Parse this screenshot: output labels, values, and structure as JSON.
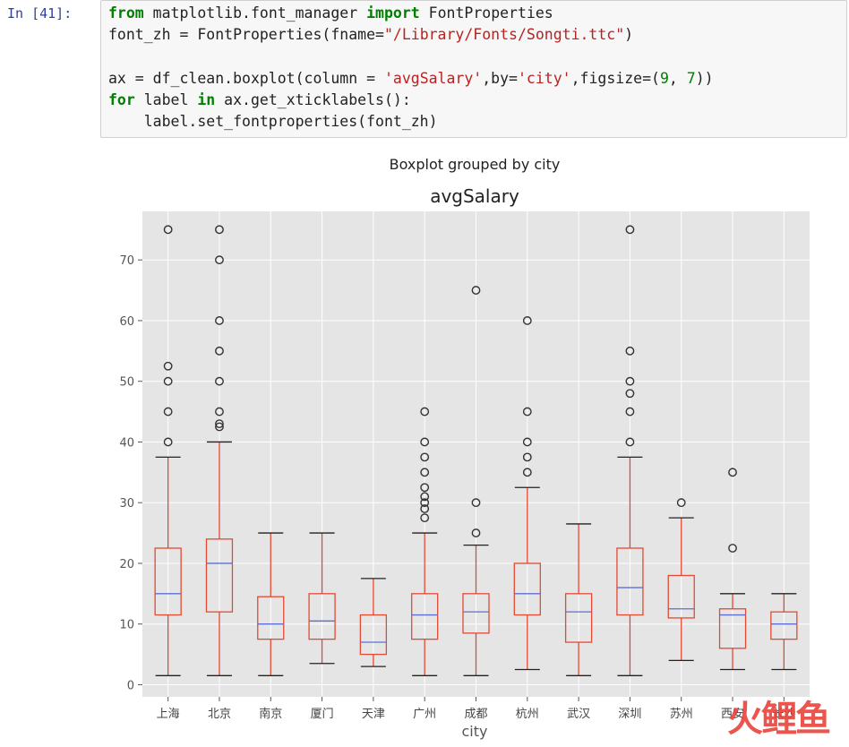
{
  "notebook": {
    "prompt": "In [41]:",
    "code_lines": [
      [
        [
          "kw",
          "from"
        ],
        [
          "t",
          " matplotlib.font_manager "
        ],
        [
          "kw",
          "import"
        ],
        [
          "t",
          " FontProperties"
        ]
      ],
      [
        [
          "t",
          "font_zh = FontProperties(fname="
        ],
        [
          "str",
          "\"/Library/Fonts/Songti.ttc\""
        ],
        [
          "t",
          ")"
        ]
      ],
      [],
      [
        [
          "t",
          "ax = df_clean.boxplot(column = "
        ],
        [
          "str",
          "'avgSalary'"
        ],
        [
          "t",
          ",by="
        ],
        [
          "str",
          "'city'"
        ],
        [
          "t",
          ",figsize=("
        ],
        [
          "num",
          "9"
        ],
        [
          "t",
          ", "
        ],
        [
          "num",
          "7"
        ],
        [
          "t",
          "))"
        ]
      ],
      [
        [
          "kw",
          "for"
        ],
        [
          "t",
          " label "
        ],
        [
          "kw",
          "in"
        ],
        [
          "t",
          " ax.get_xticklabels():"
        ]
      ],
      [
        [
          "t",
          "    label.set_fontproperties(font_zh)"
        ]
      ]
    ]
  },
  "chart_data": {
    "type": "boxplot",
    "suptitle": "Boxplot grouped by city",
    "title": "avgSalary",
    "xlabel": "city",
    "ylabel": "",
    "ylim": [
      -2,
      78
    ],
    "yticks": [
      0,
      10,
      20,
      30,
      40,
      50,
      60,
      70
    ],
    "grid": true,
    "colors": {
      "background": "#e5e5e5",
      "grid": "#ffffff",
      "box": "#e24a33",
      "median": "#5e6fd1",
      "flier": "#333333"
    },
    "categories": [
      "上海",
      "北京",
      "南京",
      "厦门",
      "天津",
      "广州",
      "成都",
      "杭州",
      "武汉",
      "深圳",
      "苏州",
      "西安",
      "长沙"
    ],
    "boxes": [
      {
        "whislo": 1.5,
        "q1": 11.5,
        "med": 15,
        "q3": 22.5,
        "whishi": 37.5,
        "fliers": [
          40,
          45,
          50,
          52.5,
          75
        ]
      },
      {
        "whislo": 1.5,
        "q1": 12,
        "med": 20,
        "q3": 24,
        "whishi": 40,
        "fliers": [
          42.5,
          43,
          45,
          50,
          55,
          60,
          70,
          75
        ]
      },
      {
        "whislo": 1.5,
        "q1": 7.5,
        "med": 10,
        "q3": 14.5,
        "whishi": 25,
        "fliers": []
      },
      {
        "whislo": 3.5,
        "q1": 7.5,
        "med": 10.5,
        "q3": 15,
        "whishi": 25,
        "fliers": []
      },
      {
        "whislo": 3,
        "q1": 5,
        "med": 7,
        "q3": 11.5,
        "whishi": 17.5,
        "fliers": []
      },
      {
        "whislo": 1.5,
        "q1": 7.5,
        "med": 11.5,
        "q3": 15,
        "whishi": 25,
        "fliers": [
          27.5,
          29,
          30,
          31,
          32.5,
          35,
          37.5,
          40,
          45
        ]
      },
      {
        "whislo": 1.5,
        "q1": 8.5,
        "med": 12,
        "q3": 15,
        "whishi": 23,
        "fliers": [
          25,
          30,
          65
        ]
      },
      {
        "whislo": 2.5,
        "q1": 11.5,
        "med": 15,
        "q3": 20,
        "whishi": 32.5,
        "fliers": [
          35,
          37.5,
          40,
          45,
          60
        ]
      },
      {
        "whislo": 1.5,
        "q1": 7,
        "med": 12,
        "q3": 15,
        "whishi": 26.5,
        "fliers": []
      },
      {
        "whislo": 1.5,
        "q1": 11.5,
        "med": 16,
        "q3": 22.5,
        "whishi": 37.5,
        "fliers": [
          40,
          45,
          48,
          50,
          55,
          75
        ]
      },
      {
        "whislo": 4,
        "q1": 11,
        "med": 12.5,
        "q3": 18,
        "whishi": 27.5,
        "fliers": [
          30
        ]
      },
      {
        "whislo": 2.5,
        "q1": 6,
        "med": 11.5,
        "q3": 12.5,
        "whishi": 15,
        "fliers": [
          22.5,
          35
        ]
      },
      {
        "whislo": 2.5,
        "q1": 7.5,
        "med": 10,
        "q3": 12,
        "whishi": 15,
        "fliers": []
      }
    ]
  },
  "watermark": "火鲤鱼"
}
